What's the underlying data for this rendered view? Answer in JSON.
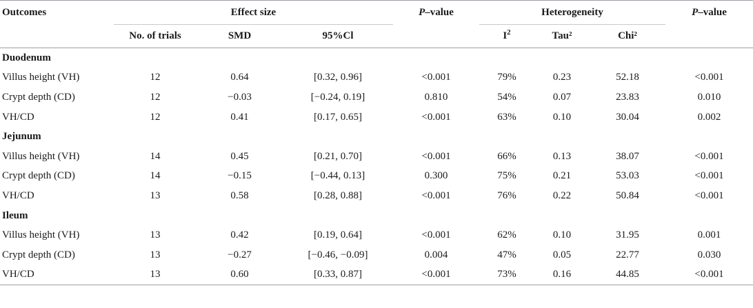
{
  "headers": {
    "outcomes": "Outcomes",
    "effect_size": "Effect size",
    "p_value_1_italic": "P",
    "p_value_1_rest": "–value",
    "heterogeneity": "Heterogeneity",
    "p_value_2_italic": "P",
    "p_value_2_rest": "–value",
    "no_of_trials": "No. of trials",
    "smd": "SMD",
    "ci95": "95%Cl",
    "i2_base": "I",
    "i2_sup": "2",
    "tau2": "Tau²",
    "chi2": "Chi²"
  },
  "sections": [
    {
      "name": "Duodenum",
      "rows": [
        {
          "outcome": "Villus height (VH)",
          "trials": "12",
          "smd": "0.64",
          "ci": "[0.32, 0.96]",
          "p": "<0.001",
          "i2": "79%",
          "tau2": "0.23",
          "chi2": "52.18",
          "p_het": "<0.001"
        },
        {
          "outcome": "Crypt depth (CD)",
          "trials": "12",
          "smd": "−0.03",
          "ci": "[−0.24, 0.19]",
          "p": "0.810",
          "i2": "54%",
          "tau2": "0.07",
          "chi2": "23.83",
          "p_het": "0.010"
        },
        {
          "outcome": "VH/CD",
          "trials": "12",
          "smd": "0.41",
          "ci": "[0.17, 0.65]",
          "p": "<0.001",
          "i2": "63%",
          "tau2": "0.10",
          "chi2": "30.04",
          "p_het": "0.002"
        }
      ]
    },
    {
      "name": "Jejunum",
      "rows": [
        {
          "outcome": "Villus height (VH)",
          "trials": "14",
          "smd": "0.45",
          "ci": "[0.21, 0.70]",
          "p": "<0.001",
          "i2": "66%",
          "tau2": "0.13",
          "chi2": "38.07",
          "p_het": "<0.001"
        },
        {
          "outcome": "Crypt depth (CD)",
          "trials": "14",
          "smd": "−0.15",
          "ci": "[−0.44, 0.13]",
          "p": "0.300",
          "i2": "75%",
          "tau2": "0.21",
          "chi2": "53.03",
          "p_het": "<0.001"
        },
        {
          "outcome": "VH/CD",
          "trials": "13",
          "smd": "0.58",
          "ci": "[0.28, 0.88]",
          "p": "<0.001",
          "i2": "76%",
          "tau2": "0.22",
          "chi2": "50.84",
          "p_het": "<0.001"
        }
      ]
    },
    {
      "name": "Ileum",
      "rows": [
        {
          "outcome": "Villus height (VH)",
          "trials": "13",
          "smd": "0.42",
          "ci": "[0.19, 0.64]",
          "p": "<0.001",
          "i2": "62%",
          "tau2": "0.10",
          "chi2": "31.95",
          "p_het": "0.001"
        },
        {
          "outcome": "Crypt depth (CD)",
          "trials": "13",
          "smd": "−0.27",
          "ci": "[−0.46, −0.09]",
          "p": "0.004",
          "i2": "47%",
          "tau2": "0.05",
          "chi2": "22.77",
          "p_het": "0.030"
        },
        {
          "outcome": "VH/CD",
          "trials": "13",
          "smd": "0.60",
          "ci": "[0.33, 0.87]",
          "p": "<0.001",
          "i2": "73%",
          "tau2": "0.16",
          "chi2": "44.85",
          "p_het": "<0.001"
        }
      ]
    }
  ]
}
